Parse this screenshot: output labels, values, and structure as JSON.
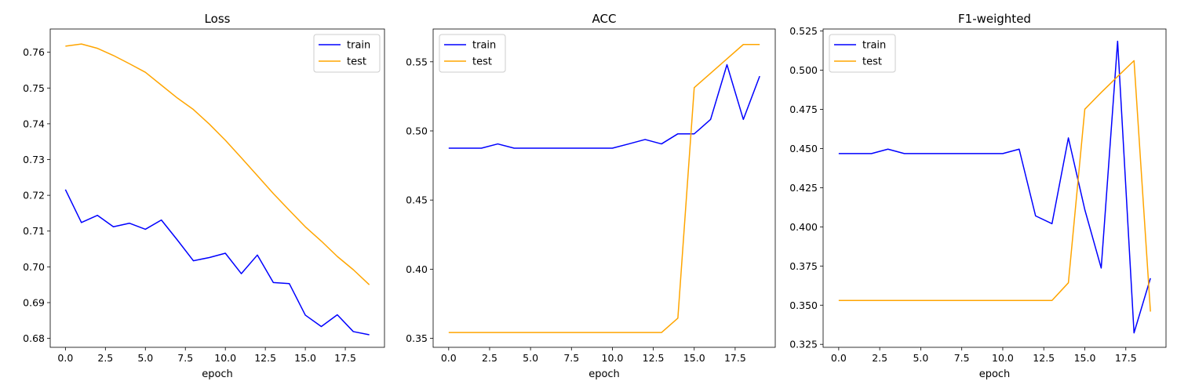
{
  "chart_data": [
    {
      "type": "line",
      "title": "Loss",
      "xlabel": "epoch",
      "ylabel": "",
      "x": [
        0,
        1,
        2,
        3,
        4,
        5,
        6,
        7,
        8,
        9,
        10,
        11,
        12,
        13,
        14,
        15,
        16,
        17,
        18,
        19
      ],
      "xlim": [
        -0.95,
        19.95
      ],
      "ylim": [
        0.6775,
        0.7665
      ],
      "xticks": [
        0.0,
        2.5,
        5.0,
        7.5,
        10.0,
        12.5,
        15.0,
        17.5
      ],
      "xtick_labels": [
        "0.0",
        "2.5",
        "5.0",
        "7.5",
        "10.0",
        "12.5",
        "15.0",
        "17.5"
      ],
      "yticks": [
        0.68,
        0.69,
        0.7,
        0.71,
        0.72,
        0.73,
        0.74,
        0.75,
        0.76
      ],
      "ytick_labels": [
        "0.68",
        "0.69",
        "0.70",
        "0.71",
        "0.72",
        "0.73",
        "0.74",
        "0.75",
        "0.76"
      ],
      "legend_loc": "top-right",
      "grid": false,
      "series": [
        {
          "name": "train",
          "color": "#0000ff",
          "values": [
            0.7216,
            0.7124,
            0.7144,
            0.7112,
            0.7122,
            0.7105,
            0.7131,
            0.7075,
            0.7017,
            0.7026,
            0.7038,
            0.6981,
            0.7033,
            0.6956,
            0.6953,
            0.6865,
            0.6833,
            0.6866,
            0.6819,
            0.681
          ]
        },
        {
          "name": "test",
          "color": "#ffa500",
          "values": [
            0.7617,
            0.7623,
            0.7611,
            0.7591,
            0.7568,
            0.7544,
            0.7508,
            0.7472,
            0.744,
            0.7399,
            0.7354,
            0.7305,
            0.7255,
            0.7205,
            0.7158,
            0.7112,
            0.7072,
            0.7029,
            0.6992,
            0.695
          ]
        }
      ]
    },
    {
      "type": "line",
      "title": "ACC",
      "xlabel": "epoch",
      "ylabel": "",
      "x": [
        0,
        1,
        2,
        3,
        4,
        5,
        6,
        7,
        8,
        9,
        10,
        11,
        12,
        13,
        14,
        15,
        16,
        17,
        18,
        19
      ],
      "xlim": [
        -0.95,
        19.95
      ],
      "ylim": [
        0.3435,
        0.5737
      ],
      "xticks": [
        0.0,
        2.5,
        5.0,
        7.5,
        10.0,
        12.5,
        15.0,
        17.5
      ],
      "xtick_labels": [
        "0.0",
        "2.5",
        "5.0",
        "7.5",
        "10.0",
        "12.5",
        "15.0",
        "17.5"
      ],
      "yticks": [
        0.35,
        0.4,
        0.45,
        0.5,
        0.55
      ],
      "ytick_labels": [
        "0.35",
        "0.40",
        "0.45",
        "0.50",
        "0.55"
      ],
      "legend_loc": "top-left",
      "grid": false,
      "series": [
        {
          "name": "train",
          "color": "#0000ff",
          "values": [
            0.4875,
            0.4875,
            0.4875,
            0.4906,
            0.4875,
            0.4875,
            0.4875,
            0.4875,
            0.4875,
            0.4875,
            0.4875,
            0.4906,
            0.4938,
            0.4906,
            0.4979,
            0.4979,
            0.5083,
            0.5479,
            0.5083,
            0.5396
          ]
        },
        {
          "name": "test",
          "color": "#ffa500",
          "values": [
            0.3542,
            0.3542,
            0.3542,
            0.3542,
            0.3542,
            0.3542,
            0.3542,
            0.3542,
            0.3542,
            0.3542,
            0.3542,
            0.3542,
            0.3542,
            0.3542,
            0.3646,
            0.5313,
            0.5417,
            0.5521,
            0.5625,
            0.5625
          ]
        }
      ]
    },
    {
      "type": "line",
      "title": "F1-weighted",
      "xlabel": "epoch",
      "ylabel": "",
      "x": [
        0,
        1,
        2,
        3,
        4,
        5,
        6,
        7,
        8,
        9,
        10,
        11,
        12,
        13,
        14,
        15,
        16,
        17,
        18,
        19
      ],
      "xlim": [
        -0.95,
        19.95
      ],
      "ylim": [
        0.3231,
        0.5263
      ],
      "xticks": [
        0.0,
        2.5,
        5.0,
        7.5,
        10.0,
        12.5,
        15.0,
        17.5
      ],
      "xtick_labels": [
        "0.0",
        "2.5",
        "5.0",
        "7.5",
        "10.0",
        "12.5",
        "15.0",
        "17.5"
      ],
      "yticks": [
        0.325,
        0.35,
        0.375,
        0.4,
        0.425,
        0.45,
        0.475,
        0.5,
        0.525
      ],
      "ytick_labels": [
        "0.325",
        "0.350",
        "0.375",
        "0.400",
        "0.425",
        "0.450",
        "0.475",
        "0.500",
        "0.525"
      ],
      "legend_loc": "top-left",
      "grid": false,
      "series": [
        {
          "name": "train",
          "color": "#0000ff",
          "values": [
            0.4468,
            0.4468,
            0.4468,
            0.4496,
            0.4468,
            0.4468,
            0.4468,
            0.4468,
            0.4468,
            0.4468,
            0.4468,
            0.4496,
            0.407,
            0.402,
            0.4568,
            0.411,
            0.3737,
            0.5185,
            0.3323,
            0.3672
          ]
        },
        {
          "name": "test",
          "color": "#ffa500",
          "values": [
            0.353,
            0.353,
            0.353,
            0.353,
            0.353,
            0.353,
            0.353,
            0.353,
            0.353,
            0.353,
            0.353,
            0.353,
            0.353,
            0.353,
            0.3643,
            0.4751,
            0.4858,
            0.496,
            0.5061,
            0.3459
          ]
        }
      ]
    }
  ]
}
